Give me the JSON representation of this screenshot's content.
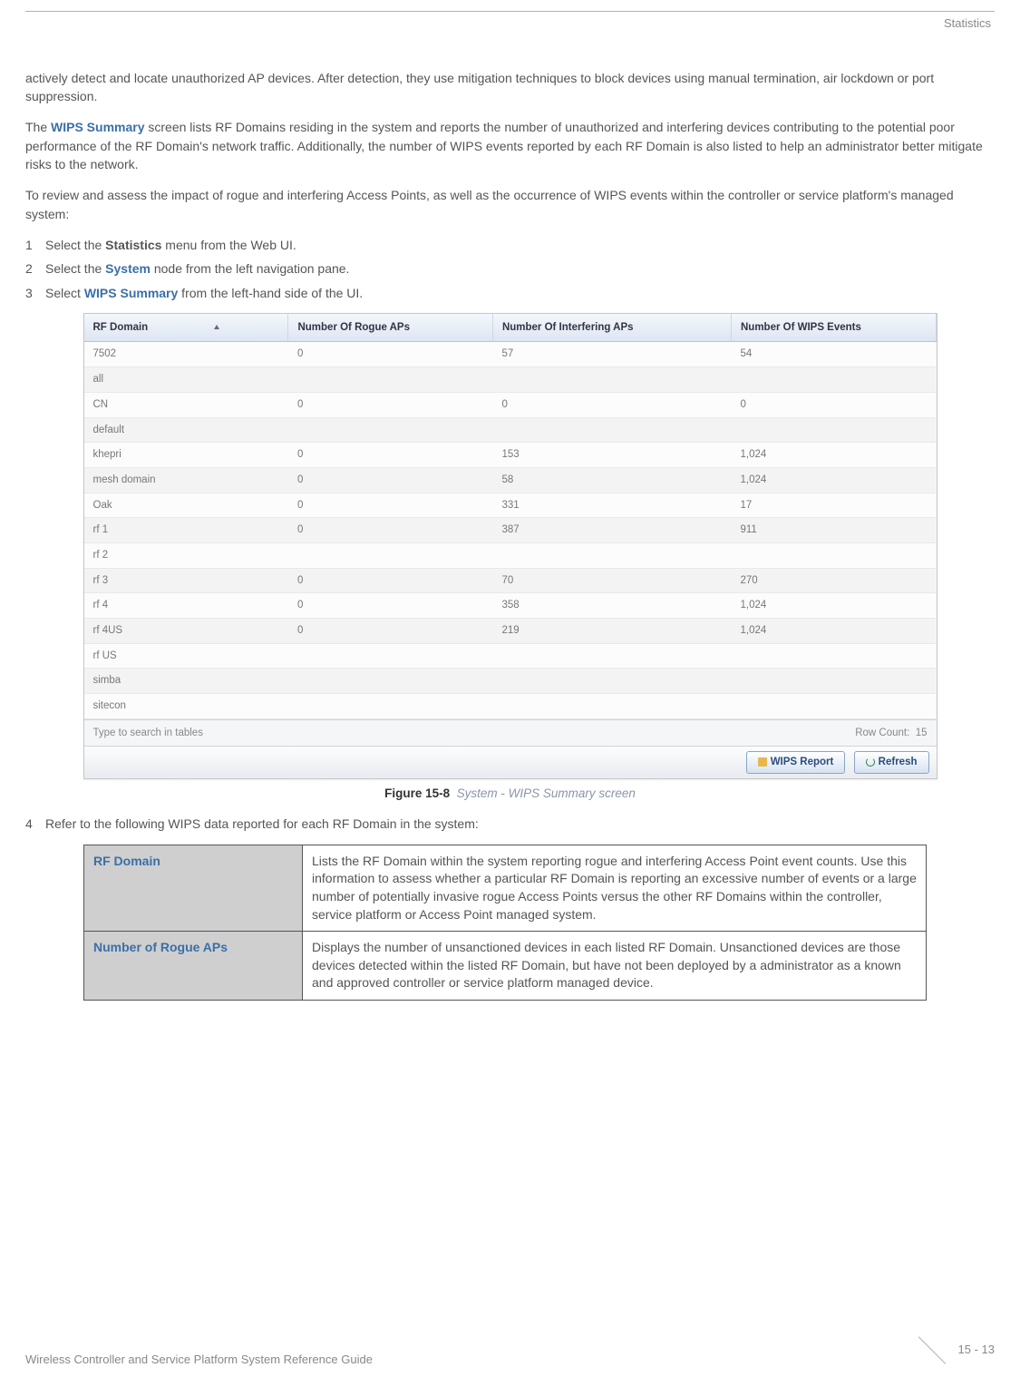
{
  "header": {
    "section": "Statistics"
  },
  "paragraphs": {
    "p1": "actively detect and locate unauthorized AP devices. After detection, they use mitigation techniques to block devices using manual termination, air lockdown or port suppression.",
    "p2a": "The ",
    "p2_emph": "WIPS Summary",
    "p2b": " screen lists RF Domains residing in the system and reports the number of unauthorized and interfering devices contributing to the potential poor performance of the RF Domain's network traffic. Additionally, the number of WIPS events reported by each RF Domain is also listed to help an administrator better mitigate risks to the network.",
    "p3": "To review and assess the impact of rogue and interfering Access Points, as well as the occurrence of WIPS events within the controller or service platform's managed system:"
  },
  "steps": [
    {
      "n": "1",
      "pre": "Select the ",
      "bold": "Statistics",
      "post": " menu from the Web UI."
    },
    {
      "n": "2",
      "pre": "Select the ",
      "blue": "System",
      "post": " node from the left navigation pane."
    },
    {
      "n": "3",
      "pre": "Select ",
      "blue": "WIPS Summary",
      "post": " from the left-hand side of the UI."
    }
  ],
  "screenshot": {
    "columns": [
      "RF Domain",
      "Number Of Rogue APs",
      "Number Of Interfering APs",
      "Number Of WIPS Events"
    ],
    "rows": [
      [
        "7502",
        "0",
        "57",
        "54"
      ],
      [
        "all",
        "",
        "",
        ""
      ],
      [
        "CN",
        "0",
        "0",
        "0"
      ],
      [
        "default",
        "",
        "",
        ""
      ],
      [
        "khepri",
        "0",
        "153",
        "1,024"
      ],
      [
        "mesh domain",
        "0",
        "58",
        "1,024"
      ],
      [
        "Oak",
        "0",
        "331",
        "17"
      ],
      [
        "rf 1",
        "0",
        "387",
        "911"
      ],
      [
        "rf 2",
        "",
        "",
        ""
      ],
      [
        "rf 3",
        "0",
        "70",
        "270"
      ],
      [
        "rf 4",
        "0",
        "358",
        "1,024"
      ],
      [
        "rf 4US",
        "0",
        "219",
        "1,024"
      ],
      [
        "rf US",
        "",
        "",
        ""
      ],
      [
        "simba",
        "",
        "",
        ""
      ],
      [
        "sitecon",
        "",
        "",
        ""
      ]
    ],
    "search_placeholder": "Type to search in tables",
    "row_count_label": "Row Count:",
    "row_count_value": "15",
    "buttons": {
      "report": "WIPS Report",
      "refresh": "Refresh"
    }
  },
  "figure": {
    "label": "Figure 15-8",
    "desc": "System - WIPS Summary screen"
  },
  "step4": {
    "n": "4",
    "text": "Refer to the following WIPS data reported for each RF Domain in the system:"
  },
  "def_table": [
    {
      "key": "RF Domain",
      "val": "Lists the RF Domain within the system reporting rogue and interfering Access Point event counts. Use this information to assess whether a particular RF Domain is reporting an excessive number of events or a large number of potentially invasive rogue Access Points versus the other RF Domains within the controller, service platform or Access Point managed system."
    },
    {
      "key": "Number of Rogue APs",
      "val": "Displays the number of unsanctioned devices in each listed RF Domain. Unsanctioned devices are those devices detected within the listed RF Domain, but have not been deployed by a administrator as a known and approved controller or service platform managed device."
    }
  ],
  "footer": {
    "guide": "Wireless Controller and Service Platform System Reference Guide",
    "page": "15 - 13"
  }
}
